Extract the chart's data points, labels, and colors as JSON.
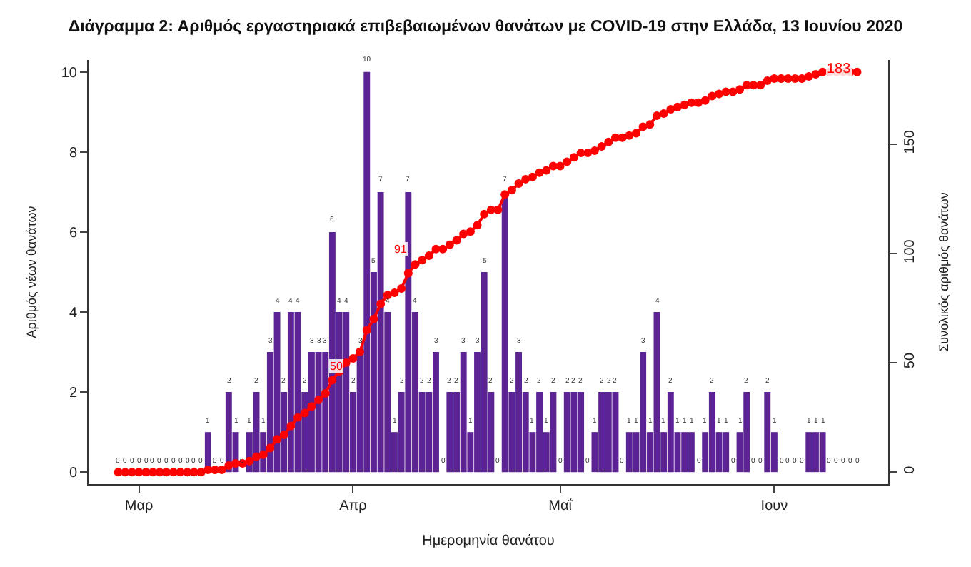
{
  "chart_data": {
    "type": "bar",
    "title": "Διάγραμμα 2: Αριθμός εργαστηριακά επιβεβαιωμένων θανάτων με COVID-19 στην Ελλάδα, 13 Ιουνίου 2020",
    "xlabel": "Ημερομηνία θανάτου",
    "ylabel": "Αριθμός νέων θανάτων",
    "y2label": "Συνολικός αριθμός θανάτων",
    "categories": [
      null,
      null,
      null,
      "Μαρ",
      null,
      null,
      null,
      null,
      null,
      null,
      null,
      null,
      null,
      null,
      null,
      null,
      null,
      null,
      null,
      null,
      null,
      null,
      null,
      null,
      null,
      null,
      null,
      null,
      null,
      null,
      null,
      null,
      null,
      null,
      "Απρ",
      null,
      null,
      null,
      null,
      null,
      null,
      null,
      null,
      null,
      null,
      null,
      null,
      null,
      null,
      null,
      null,
      null,
      null,
      null,
      null,
      null,
      null,
      null,
      null,
      null,
      null,
      null,
      null,
      null,
      "Μαΐ",
      null,
      null,
      null,
      null,
      null,
      null,
      null,
      null,
      null,
      null,
      null,
      null,
      null,
      null,
      null,
      null,
      null,
      null,
      null,
      null,
      null,
      null,
      null,
      null,
      null,
      null,
      null,
      null,
      null,
      null,
      "Ιουν",
      null,
      null,
      null,
      null,
      null,
      null,
      null,
      null,
      null,
      null,
      null,
      null
    ],
    "series": [
      {
        "color": "#5b2393",
        "values": [
          0,
          0,
          0,
          0,
          0,
          0,
          0,
          0,
          0,
          0,
          0,
          0,
          0,
          1,
          0,
          0,
          2,
          1,
          0,
          1,
          2,
          1,
          3,
          4,
          2,
          4,
          4,
          2,
          3,
          3,
          3,
          6,
          4,
          4,
          2,
          3,
          10,
          5,
          7,
          4,
          1,
          2,
          7,
          4,
          2,
          2,
          3,
          0,
          2,
          2,
          3,
          1,
          3,
          5,
          2,
          0,
          7,
          2,
          3,
          2,
          1,
          2,
          1,
          2,
          0,
          2,
          2,
          2,
          0,
          1,
          2,
          2,
          2,
          0,
          1,
          1,
          3,
          1,
          4,
          1,
          2,
          1,
          1,
          1,
          0,
          1,
          2,
          1,
          1,
          0,
          1,
          2,
          0,
          0,
          2,
          1,
          0,
          0,
          0,
          0,
          1,
          1,
          1,
          0,
          0,
          0,
          0,
          0
        ],
        "value_labels": [
          "0",
          "0",
          "0",
          "0",
          "0",
          "0",
          "0",
          "0",
          "0",
          "0",
          "0",
          "0",
          "0",
          "1",
          "0",
          "0",
          "2",
          "1",
          "0",
          "1",
          "2",
          "1",
          "3",
          "4",
          "2",
          "4",
          "4",
          "2",
          "3",
          "3",
          "3",
          "6",
          "4",
          "4",
          "2",
          "3",
          "10",
          "5",
          "7",
          "4",
          "1",
          "2",
          "7",
          "4",
          "2",
          "2",
          "3",
          "0",
          "2",
          "2",
          "3",
          "1",
          "3",
          "5",
          "2",
          "0",
          "7",
          "2",
          "3",
          "2",
          "1",
          "2",
          "1",
          "2",
          "0",
          "2",
          "2",
          "2",
          "0",
          "1",
          "2",
          "2",
          "2",
          "0",
          "1",
          "1",
          "3",
          "1",
          "4",
          "1",
          "2",
          "1",
          "1",
          "1",
          "0",
          "1",
          "2",
          "1",
          "1",
          "0",
          "1",
          "2",
          "0",
          "0",
          "2",
          "1",
          "0",
          "0",
          "0",
          "0",
          "1",
          "1",
          "1",
          "0",
          "0",
          "0",
          "0",
          "0"
        ]
      },
      {
        "type": "line",
        "axis": "y2",
        "color": "#ff0000",
        "marker": "circle",
        "line_style": "solid",
        "values": [
          0,
          0,
          0,
          0,
          0,
          0,
          0,
          0,
          0,
          0,
          0,
          0,
          0,
          1,
          1,
          1,
          3,
          4,
          4,
          5,
          7,
          8,
          11,
          15,
          17,
          21,
          25,
          27,
          30,
          33,
          36,
          42,
          46,
          50,
          52,
          55,
          65,
          70,
          77,
          81,
          82,
          84,
          91,
          95,
          97,
          99,
          102,
          102,
          104,
          106,
          109,
          110,
          113,
          118,
          120,
          120,
          127,
          129,
          132,
          134,
          135,
          137,
          138,
          140,
          140,
          142,
          144,
          146,
          146,
          147,
          149,
          151,
          153,
          153,
          154,
          155,
          158,
          159,
          163,
          164,
          166,
          167,
          168,
          169,
          169,
          170,
          172,
          173,
          174,
          174,
          175,
          177,
          177,
          177,
          179,
          180,
          180,
          180,
          180,
          180,
          181,
          182,
          183,
          183,
          183,
          183,
          183,
          183
        ]
      }
    ],
    "annotations": [
      "50",
      "91",
      "183"
    ],
    "ylim": [
      -0.3,
      10.3
    ],
    "yticks": [
      0,
      2,
      4,
      6,
      8,
      10
    ],
    "y2lim": [
      -5.5,
      188.5
    ],
    "y2ticks": [
      0,
      50,
      100,
      150
    ]
  }
}
